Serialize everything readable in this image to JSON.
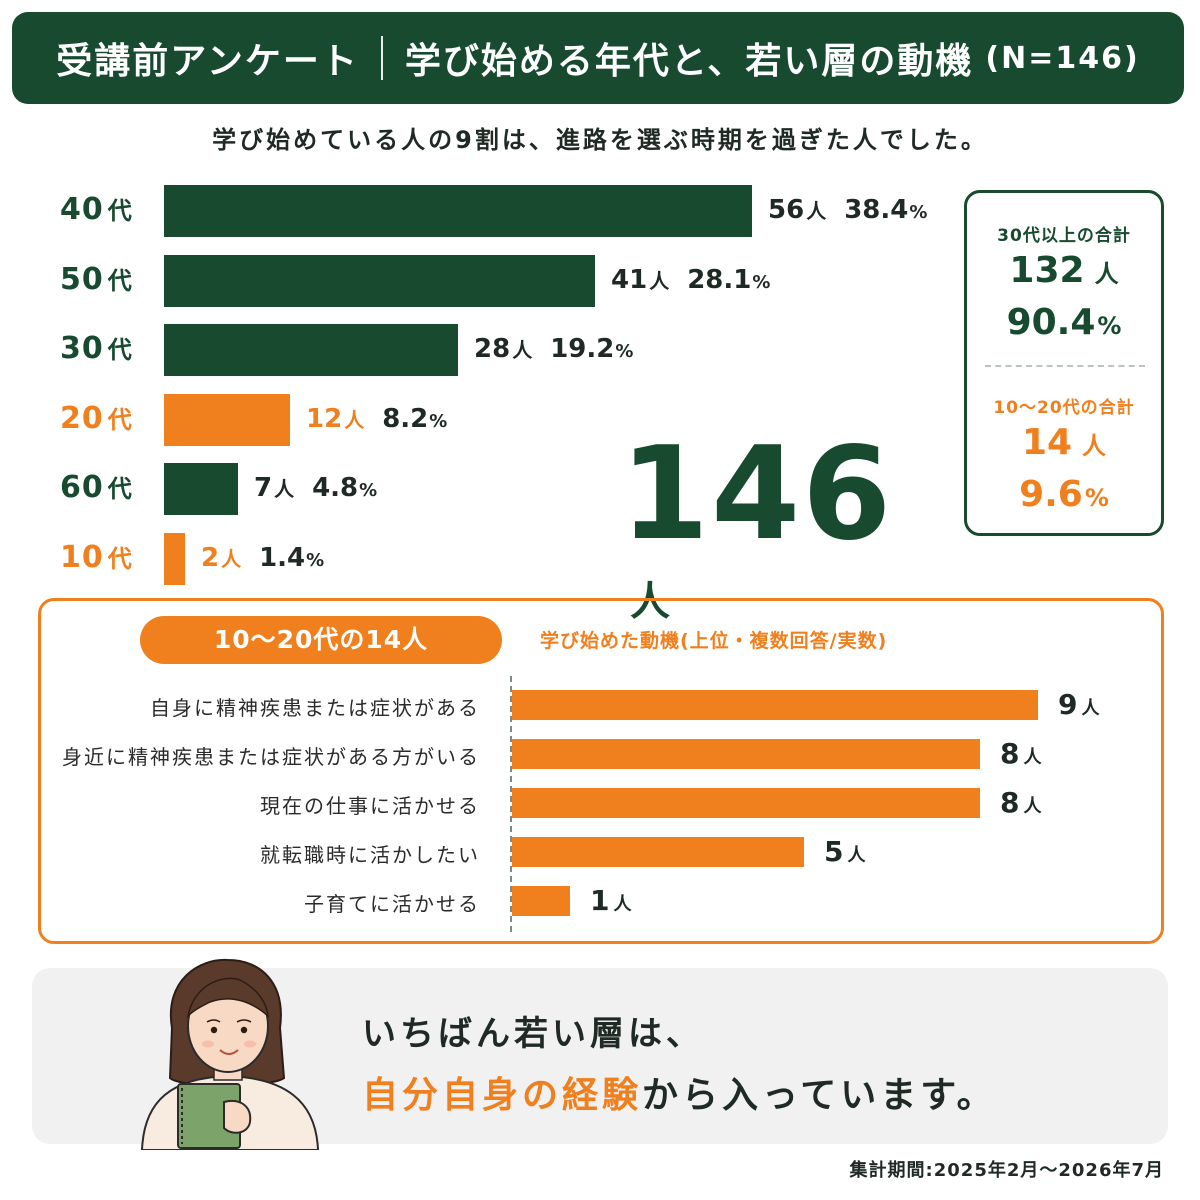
{
  "header": {
    "left": "受講前アンケート",
    "right": "学び始める年代と、若い層の動機",
    "n": "(N=146)"
  },
  "subtitle": "学び始めている人の9割は、進路を選ぶ時期を過ぎた人でした。",
  "colors": {
    "green": "#174a2f",
    "orange": "#f07f1e",
    "text": "#1f2a25"
  },
  "total": {
    "value": "146",
    "unit": "人"
  },
  "totals_box": {
    "senior_label": "30代以上の合計",
    "senior_count": "132",
    "senior_count_unit": "人",
    "senior_pct": "90.4",
    "senior_pct_unit": "%",
    "junior_label": "10〜20代の合計",
    "junior_count": "14",
    "junior_count_unit": "人",
    "junior_pct": "9.6",
    "junior_pct_unit": "%"
  },
  "motive_section": {
    "pill": "10〜20代の14人",
    "title": "学び始めた動機(上位・複数回答/実数)"
  },
  "banner": {
    "line1": "いちばん若い層は、",
    "line2_highlight": "自分自身の経験",
    "line2_rest": "から入っています。"
  },
  "period": "集計期間:2025年2月〜2026年7月",
  "chart_data": [
    {
      "type": "bar",
      "orientation": "horizontal",
      "categories": [
        "40代",
        "50代",
        "30代",
        "20代",
        "60代",
        "10代"
      ],
      "series": [
        {
          "values": [
            56,
            41,
            28,
            12,
            7,
            2
          ],
          "unit": "人",
          "percent_labels": [
            "38.4",
            "28.1",
            "19.2",
            "8.2",
            "4.8",
            "1.4"
          ],
          "percent_unit": "%",
          "colors": [
            "#174a2f",
            "#174a2f",
            "#174a2f",
            "#f07f1e",
            "#174a2f",
            "#f07f1e"
          ]
        }
      ],
      "xlim": [
        0,
        56
      ]
    },
    {
      "type": "bar",
      "orientation": "horizontal",
      "categories": [
        "自身に精神疾患または症状がある",
        "身近に精神疾患または症状がある方がいる",
        "現在の仕事に活かせる",
        "就転職時に活かしたい",
        "子育てに活かせる"
      ],
      "series": [
        {
          "values": [
            9,
            8,
            8,
            5,
            1
          ],
          "unit": "人",
          "color": "#f07f1e"
        }
      ],
      "xlim": [
        0,
        9
      ]
    }
  ]
}
